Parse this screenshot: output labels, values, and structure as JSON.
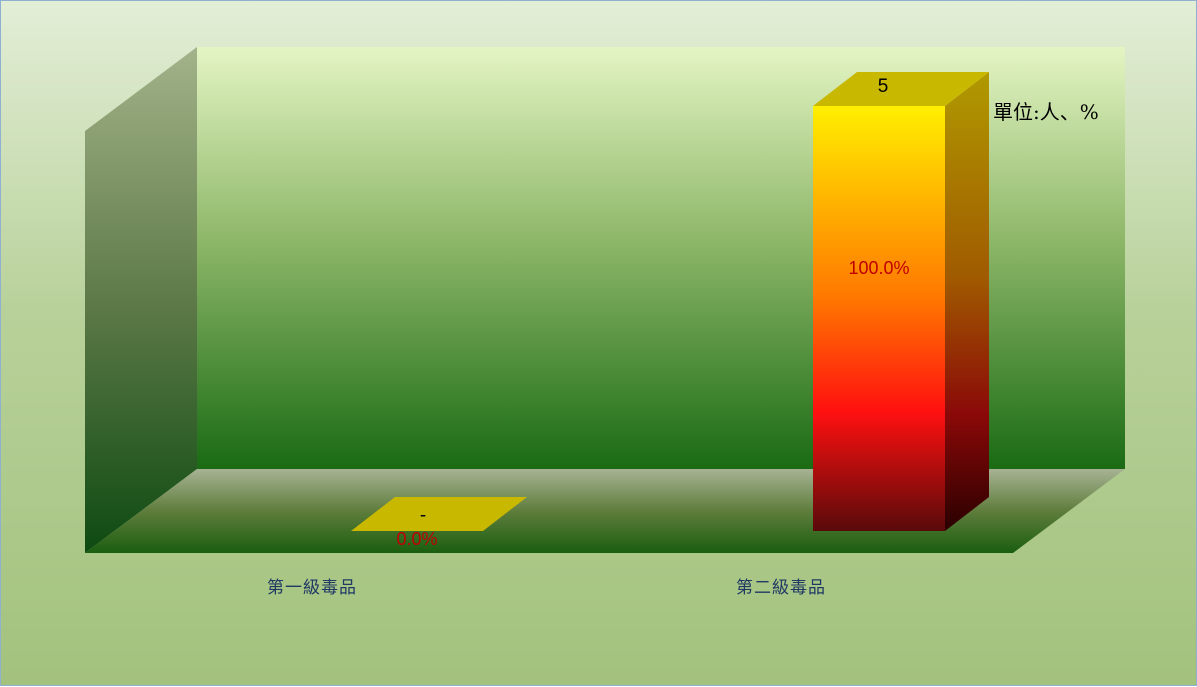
{
  "chart_data": {
    "type": "bar",
    "categories": [
      "第一級毒品",
      "第二級毒品"
    ],
    "values": [
      0,
      5
    ],
    "value_labels": [
      "-",
      "5"
    ],
    "percent_labels": [
      "0.0%",
      "100.0%"
    ],
    "unit_label": "單位:人、%",
    "ylim": [
      0,
      5
    ],
    "grid": false,
    "legend": "none",
    "three_d": true
  },
  "colors": {
    "category_label": "#1f3864",
    "percent_label": "#c00000",
    "bar_top": "#c9b800",
    "bar_front_top": "#ffef00",
    "bar_front_mid": "#ff3000",
    "bar_front_bottom": "#5a0a0a",
    "back_wall_top": "#e4f5c4",
    "back_wall_bottom": "#1a6b14"
  }
}
